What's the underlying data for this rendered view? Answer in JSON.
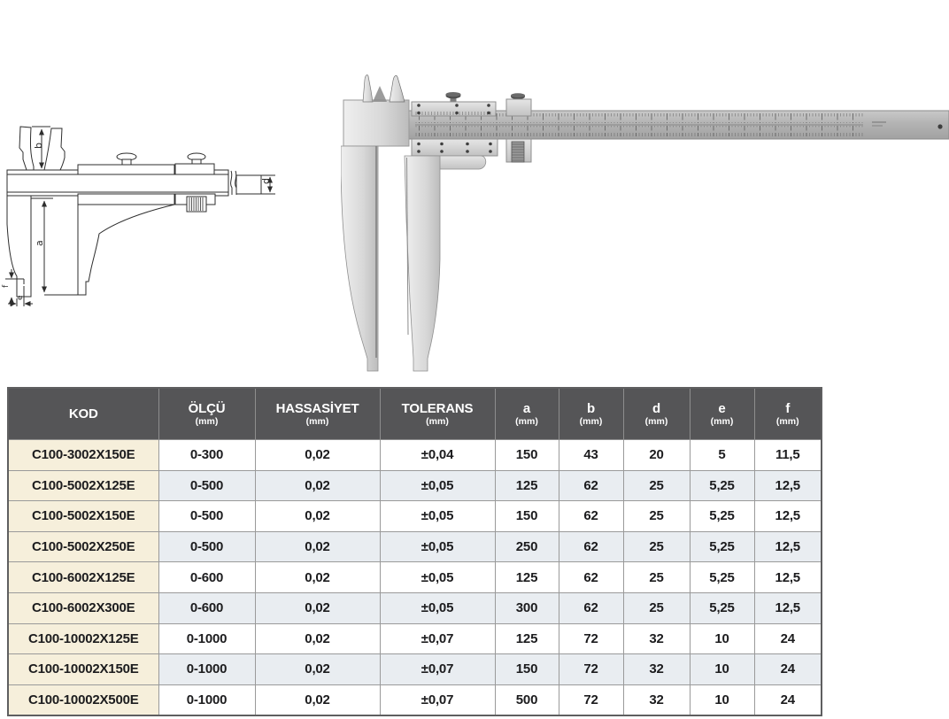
{
  "diagram": {
    "dimension_labels": {
      "b": "b",
      "d": "d",
      "a": "a",
      "f": "f",
      "e": "e"
    }
  },
  "table": {
    "columns": [
      {
        "label": "KOD",
        "unit": ""
      },
      {
        "label": "ÖLÇÜ",
        "unit": "(mm)"
      },
      {
        "label": "HASSASİYET",
        "unit": "(mm)"
      },
      {
        "label": "TOLERANS",
        "unit": "(mm)"
      },
      {
        "label": "a",
        "unit": "(mm)"
      },
      {
        "label": "b",
        "unit": "(mm)"
      },
      {
        "label": "d",
        "unit": "(mm)"
      },
      {
        "label": "e",
        "unit": "(mm)"
      },
      {
        "label": "f",
        "unit": "(mm)"
      }
    ],
    "rows": [
      [
        "C100-3002X150E",
        "0-300",
        "0,02",
        "±0,04",
        "150",
        "43",
        "20",
        "5",
        "11,5"
      ],
      [
        "C100-5002X125E",
        "0-500",
        "0,02",
        "±0,05",
        "125",
        "62",
        "25",
        "5,25",
        "12,5"
      ],
      [
        "C100-5002X150E",
        "0-500",
        "0,02",
        "±0,05",
        "150",
        "62",
        "25",
        "5,25",
        "12,5"
      ],
      [
        "C100-5002X250E",
        "0-500",
        "0,02",
        "±0,05",
        "250",
        "62",
        "25",
        "5,25",
        "12,5"
      ],
      [
        "C100-6002X125E",
        "0-600",
        "0,02",
        "±0,05",
        "125",
        "62",
        "25",
        "5,25",
        "12,5"
      ],
      [
        "C100-6002X300E",
        "0-600",
        "0,02",
        "±0,05",
        "300",
        "62",
        "25",
        "5,25",
        "12,5"
      ],
      [
        "C100-10002X125E",
        "0-1000",
        "0,02",
        "±0,07",
        "125",
        "72",
        "32",
        "10",
        "24"
      ],
      [
        "C100-10002X150E",
        "0-1000",
        "0,02",
        "±0,07",
        "150",
        "72",
        "32",
        "10",
        "24"
      ],
      [
        "C100-10002X500E",
        "0-1000",
        "0,02",
        "±0,07",
        "500",
        "72",
        "32",
        "10",
        "24"
      ]
    ]
  },
  "colors": {
    "header_bg": "#555557",
    "header_text": "#ffffff",
    "kod_cell_bg": "#f6efdb",
    "zebra_row_bg": "#e9edf1",
    "grid_border": "#9a9a9a",
    "outer_border": "#5f5f60",
    "cell_text": "#1c1c1e",
    "drawing_line": "#2e2e2e"
  }
}
